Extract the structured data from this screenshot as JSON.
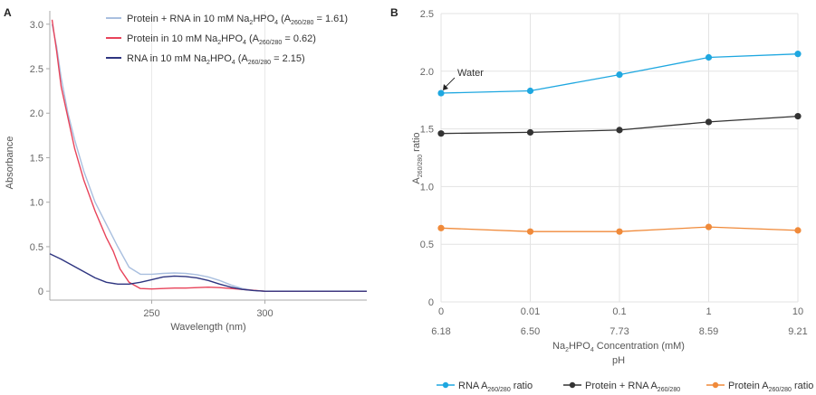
{
  "chart_data": [
    {
      "panel": "A",
      "type": "line",
      "xlabel": "Wavelength (nm)",
      "ylabel": "Absorbance",
      "xlim": [
        205,
        345
      ],
      "ylim": [
        -0.1,
        3.15
      ],
      "x_ticks": [
        250,
        300
      ],
      "y_ticks": [
        0,
        0.5,
        1.0,
        1.5,
        2.0,
        2.5,
        3.0
      ],
      "y_tick_labels": [
        "0",
        "0.5",
        "1.0",
        "1.5",
        "2.0",
        "2.5",
        "3.0"
      ],
      "series": [
        {
          "name": "Protein + RNA in 10 mM Na2HPO4 (A260/280 = 1.61)",
          "legend": {
            "pre": "Protein + RNA in 10 mM Na",
            "s1": "2",
            "mid": "HPO",
            "s2": "4",
            "paren": " (A",
            "s3": "260/280",
            "post": " = 1.61)"
          },
          "color": "#a9bfdf",
          "x": [
            206,
            208,
            210,
            213,
            216,
            220,
            225,
            230,
            235,
            240,
            245,
            250,
            255,
            260,
            265,
            270,
            275,
            280,
            285,
            290,
            295,
            300,
            310,
            320,
            330,
            345
          ],
          "y": [
            3.0,
            2.75,
            2.4,
            2.0,
            1.7,
            1.35,
            1.0,
            0.75,
            0.5,
            0.27,
            0.19,
            0.19,
            0.2,
            0.205,
            0.2,
            0.185,
            0.16,
            0.12,
            0.07,
            0.03,
            0.01,
            0.0,
            0.0,
            0.0,
            0.0,
            0.0
          ]
        },
        {
          "name": "Protein in 10 mM Na2HPO4 (A260/280 = 0.62)",
          "legend": {
            "pre": "Protein in 10 mM Na",
            "s1": "2",
            "mid": "HPO",
            "s2": "4",
            "paren": " (A",
            "s3": "260/280",
            "post": " = 0.62)"
          },
          "color": "#e8435a",
          "x": [
            206,
            208,
            210,
            213,
            216,
            220,
            225,
            230,
            233,
            236,
            240,
            245,
            250,
            255,
            260,
            265,
            270,
            275,
            280,
            285,
            290,
            295,
            300,
            310,
            320,
            330,
            345
          ],
          "y": [
            3.05,
            2.7,
            2.3,
            1.95,
            1.6,
            1.25,
            0.9,
            0.6,
            0.45,
            0.25,
            0.1,
            0.03,
            0.025,
            0.03,
            0.035,
            0.035,
            0.04,
            0.045,
            0.04,
            0.03,
            0.02,
            0.01,
            0.0,
            0.0,
            0.0,
            0.0,
            0.0
          ]
        },
        {
          "name": "RNA in 10 mM Na2HPO4 (A260/280 = 2.15)",
          "legend": {
            "pre": "RNA in 10 mM Na",
            "s1": "2",
            "mid": "HPO",
            "s2": "4",
            "paren": " (A",
            "s3": "260/280",
            "post": " = 2.15)"
          },
          "color": "#2e3580",
          "x": [
            205,
            210,
            215,
            220,
            225,
            230,
            235,
            240,
            245,
            250,
            255,
            260,
            265,
            270,
            275,
            280,
            285,
            290,
            295,
            300,
            310,
            320,
            330,
            345
          ],
          "y": [
            0.42,
            0.36,
            0.29,
            0.22,
            0.15,
            0.1,
            0.08,
            0.08,
            0.1,
            0.13,
            0.16,
            0.17,
            0.165,
            0.15,
            0.12,
            0.08,
            0.045,
            0.02,
            0.008,
            0.0,
            0.0,
            0.0,
            0.0,
            0.0
          ]
        }
      ]
    },
    {
      "panel": "B",
      "type": "line",
      "ylim": [
        0,
        2.5
      ],
      "y_ticks": [
        0,
        0.5,
        1.0,
        1.5,
        2.0,
        2.5
      ],
      "y_tick_labels": [
        "0",
        "0.5",
        "1.0",
        "1.5",
        "2.0",
        "2.5"
      ],
      "categories": [
        "0",
        "0.01",
        "0.1",
        "1",
        "10"
      ],
      "ph_values": [
        "6.18",
        "6.50",
        "7.73",
        "8.59",
        "9.21"
      ],
      "ylabel": {
        "pre": "A",
        "sub": "260/280",
        "post": " ratio"
      },
      "xlabel": {
        "pre": "Na",
        "s1": "2",
        "mid": "HPO",
        "s2": "4",
        "post": " Concentration (mM)"
      },
      "xlabel2": "pH",
      "annotation": "Water",
      "series": [
        {
          "name": "RNA A260/280 ratio",
          "legend": {
            "pre": "RNA A",
            "sub": "260/280",
            "post": " ratio"
          },
          "color": "#1ea7e0",
          "values": [
            1.81,
            1.83,
            1.97,
            2.12,
            2.15
          ]
        },
        {
          "name": "Protein + RNA A260/280",
          "legend": {
            "pre": "Protein + RNA A",
            "sub": "260/280",
            "post": ""
          },
          "color": "#333333",
          "values": [
            1.46,
            1.47,
            1.49,
            1.56,
            1.61
          ]
        },
        {
          "name": "Protein A260/280 ratio",
          "legend": {
            "pre": "Protein A",
            "sub": "260/280",
            "post": " ratio"
          },
          "color": "#f08a3a",
          "values": [
            0.64,
            0.61,
            0.61,
            0.65,
            0.62
          ]
        }
      ]
    }
  ]
}
